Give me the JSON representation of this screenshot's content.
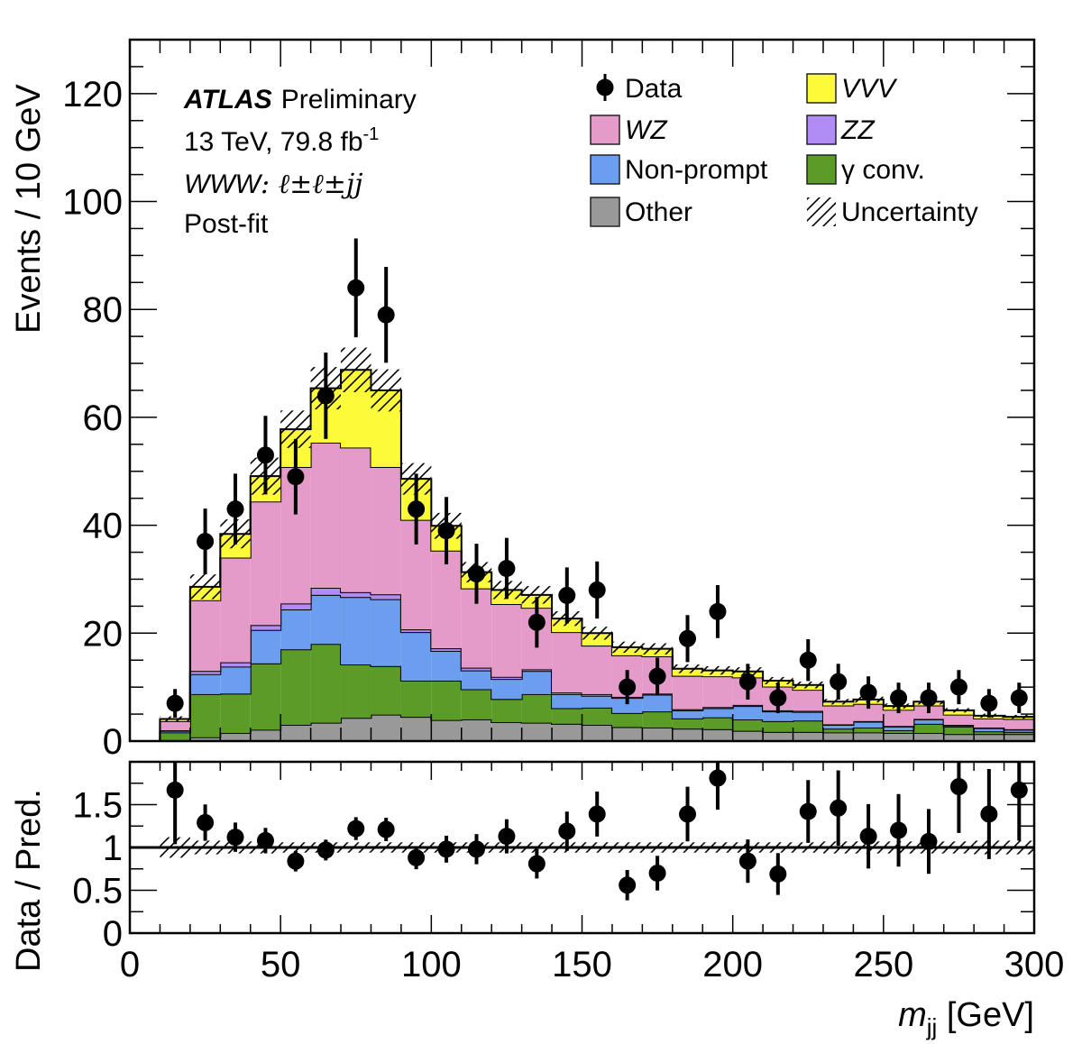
{
  "chart_data": {
    "type": "bar",
    "subtype": "stacked-histogram-with-ratio",
    "experiment_label": "ATLAS",
    "experiment_status": "Preliminary",
    "energy_lumi_prefix": "13 TeV, 79.8 fb",
    "energy_lumi_sup": "-1",
    "channel_prefix": "WWW",
    "channel_suffix": ": ℓ±ℓ±jj",
    "fit_label": "Post-fit",
    "xlabel_main": "m",
    "xlabel_sub": "jj",
    "xlabel_unit": " [GeV]",
    "ylabel": "Events / 10 GeV",
    "ratio_ylabel": "Data / Pred.",
    "xlim": [
      0,
      300
    ],
    "ylim": [
      0,
      130
    ],
    "ratio_ylim": [
      0,
      2
    ],
    "x_ticks": [
      0,
      50,
      100,
      150,
      200,
      250,
      300
    ],
    "x_tick_labels": [
      "0",
      "50",
      "100",
      "150",
      "200",
      "250",
      "300"
    ],
    "y_ticks": [
      0,
      20,
      40,
      60,
      80,
      100,
      120
    ],
    "y_tick_labels": [
      "0",
      "20",
      "40",
      "60",
      "80",
      "100",
      "120"
    ],
    "ratio_ticks": [
      0,
      0.5,
      1,
      1.5
    ],
    "ratio_tick_labels": [
      "0",
      "0.5",
      "1",
      "1.5"
    ],
    "bin_edges": [
      10,
      20,
      30,
      40,
      50,
      60,
      70,
      80,
      90,
      100,
      110,
      120,
      130,
      140,
      150,
      160,
      170,
      180,
      190,
      200,
      210,
      220,
      230,
      240,
      250,
      260,
      270,
      280,
      290,
      300
    ],
    "series": [
      {
        "name": "Other",
        "color": "#999999",
        "values": [
          0.1,
          0.7,
          1.5,
          2.1,
          3.0,
          3.4,
          4.3,
          4.9,
          4.5,
          3.9,
          4.0,
          3.5,
          3.4,
          3.2,
          3.0,
          2.6,
          2.5,
          2.3,
          2.2,
          1.9,
          1.7,
          1.7,
          1.6,
          1.6,
          1.5,
          1.5,
          1.3,
          1.3,
          1.3
        ]
      },
      {
        "name": "γ conv.",
        "color": "#5b9b27",
        "values": [
          1.5,
          8.0,
          7.3,
          12.3,
          14.0,
          14.6,
          9.9,
          9.0,
          6.7,
          7.3,
          5.6,
          4.3,
          5.3,
          2.9,
          3.2,
          2.6,
          3.0,
          1.9,
          2.2,
          2.1,
          2.0,
          2.1,
          0.7,
          0.9,
          0.5,
          1.7,
          1.4,
          0.5,
          0.4
        ]
      },
      {
        "name": "Non-prompt",
        "color": "#6c9ef0",
        "values": [
          0.3,
          3.7,
          5.0,
          6.2,
          7.4,
          9.1,
          12.5,
          12.4,
          9.0,
          5.5,
          3.5,
          3.7,
          4.3,
          2.6,
          2.2,
          2.8,
          3.1,
          1.5,
          1.7,
          2.5,
          1.8,
          1.6,
          0.7,
          1.1,
          0.7,
          0.8,
          0.2,
          0.6,
          0.4
        ]
      },
      {
        "name": "ZZ",
        "color": "#b18cf4",
        "values": [
          0.1,
          0.6,
          0.8,
          0.9,
          1.1,
          1.3,
          0.9,
          0.9,
          0.5,
          0.5,
          0.5,
          0.4,
          0.3,
          0.3,
          0.3,
          0.2,
          0.2,
          0.2,
          0.2,
          0.2,
          0.2,
          0.2,
          0.1,
          0.1,
          0.1,
          0.1,
          0.1,
          0.1,
          0.1
        ]
      },
      {
        "name": "WZ",
        "color": "#e59bc9",
        "values": [
          1.7,
          13.1,
          19.4,
          22.9,
          25.3,
          26.9,
          26.8,
          23.6,
          20.3,
          18.1,
          14.7,
          13.5,
          11.4,
          11.2,
          9.0,
          7.7,
          6.9,
          6.2,
          5.7,
          5.1,
          4.4,
          3.9,
          3.5,
          3.2,
          3.0,
          2.5,
          1.9,
          1.7,
          1.9
        ]
      },
      {
        "name": "VVV",
        "color": "#fdfb39",
        "values": [
          0.4,
          2.5,
          4.4,
          4.7,
          7.0,
          10.1,
          14.4,
          14.2,
          7.6,
          4.6,
          3.0,
          2.6,
          2.4,
          2.5,
          2.3,
          1.5,
          1.4,
          1.3,
          1.1,
          1.1,
          1.1,
          0.9,
          0.7,
          0.8,
          0.7,
          0.7,
          0.8,
          0.5,
          0.4
        ]
      }
    ],
    "uncertainty_rel": [
      0.12,
      0.08,
      0.07,
      0.07,
      0.06,
      0.06,
      0.06,
      0.06,
      0.06,
      0.06,
      0.06,
      0.06,
      0.06,
      0.06,
      0.06,
      0.06,
      0.06,
      0.06,
      0.06,
      0.06,
      0.06,
      0.06,
      0.07,
      0.07,
      0.07,
      0.07,
      0.07,
      0.08,
      0.08
    ],
    "data": {
      "name": "Data",
      "x": [
        15,
        25,
        35,
        45,
        55,
        65,
        75,
        85,
        95,
        105,
        115,
        125,
        135,
        145,
        155,
        165,
        175,
        185,
        195,
        205,
        215,
        225,
        235,
        245,
        255,
        265,
        275,
        285,
        295
      ],
      "values": [
        7,
        37,
        43,
        53,
        49,
        64,
        84,
        79,
        43,
        39,
        31,
        32,
        22,
        27,
        28,
        10,
        12,
        19,
        24,
        11,
        8,
        15,
        11,
        9,
        8,
        8,
        10,
        7,
        8
      ]
    },
    "ratio": [
      1.67,
      1.29,
      1.12,
      1.08,
      0.84,
      0.97,
      1.22,
      1.21,
      0.88,
      0.98,
      0.98,
      1.13,
      0.81,
      1.19,
      1.39,
      0.56,
      0.7,
      1.39,
      1.81,
      0.84,
      0.69,
      1.42,
      1.46,
      1.13,
      1.2,
      1.07,
      1.71,
      1.39,
      1.67
    ],
    "legend": [
      {
        "label": "Data",
        "kind": "marker",
        "italic": false
      },
      {
        "label": "VVV",
        "kind": "box",
        "color": "#fdfb39",
        "italic": true
      },
      {
        "label": "WZ",
        "kind": "box",
        "color": "#e59bc9",
        "italic": true
      },
      {
        "label": "ZZ",
        "kind": "box",
        "color": "#b18cf4",
        "italic": true
      },
      {
        "label": "Non-prompt",
        "kind": "box",
        "color": "#6c9ef0",
        "italic": false
      },
      {
        "label": "γ  conv.",
        "kind": "box",
        "color": "#5b9b27",
        "italic": false
      },
      {
        "label": "Other",
        "kind": "box",
        "color": "#999999",
        "italic": false
      },
      {
        "label": "Uncertainty",
        "kind": "hatch",
        "italic": false
      }
    ],
    "legend_position": "top-right",
    "grid": false
  }
}
